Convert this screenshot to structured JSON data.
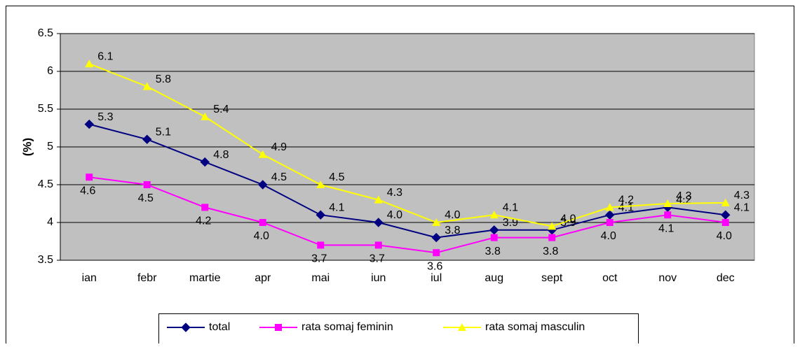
{
  "chart_data": {
    "type": "line",
    "y_label": "(%)",
    "categories": [
      "ian",
      "febr",
      "martie",
      "apr",
      "mai",
      "iun",
      "iul",
      "aug",
      "sept",
      "oct",
      "nov",
      "dec"
    ],
    "series": [
      {
        "name": "total",
        "color": "#000080",
        "marker": "diamond",
        "values": [
          5.3,
          5.1,
          4.8,
          4.5,
          4.1,
          4.0,
          3.8,
          3.9,
          3.9,
          4.1,
          4.2,
          4.1
        ],
        "value_labels": [
          "5.3",
          "5.1",
          "4.8",
          "4.5",
          "4.1",
          "4.0",
          "3.8",
          "3.9",
          "3.9",
          "4.1",
          "4.2",
          "4.1"
        ]
      },
      {
        "name": "rata somaj feminin",
        "color": "#ff00ff",
        "marker": "square",
        "values": [
          4.6,
          4.5,
          4.2,
          4.0,
          3.7,
          3.7,
          3.6,
          3.8,
          3.8,
          4.0,
          4.1,
          4.0
        ],
        "value_labels": [
          "4.6",
          "4.5",
          "4.2",
          "4.0",
          "3.7",
          "3.7",
          "3.6",
          "3.8",
          "3.8",
          "4.0",
          "4.1",
          "4.0"
        ]
      },
      {
        "name": "rata somaj masculin",
        "color": "#ffff00",
        "marker": "triangle",
        "values": [
          6.1,
          5.8,
          5.4,
          4.9,
          4.5,
          4.3,
          4.0,
          4.1,
          3.95,
          4.2,
          4.25,
          4.26
        ],
        "value_labels": [
          "6.1",
          "5.8",
          "5.4",
          "4.9",
          "4.5",
          "4.3",
          "4.0",
          "4.1",
          "4.0",
          "4.2",
          "4.3",
          "4.3"
        ]
      }
    ],
    "ylim": [
      3.5,
      6.5
    ],
    "yticks": [
      3.5,
      4,
      4.5,
      5,
      5.5,
      6,
      6.5
    ],
    "grid": true,
    "legend": "bottom"
  }
}
